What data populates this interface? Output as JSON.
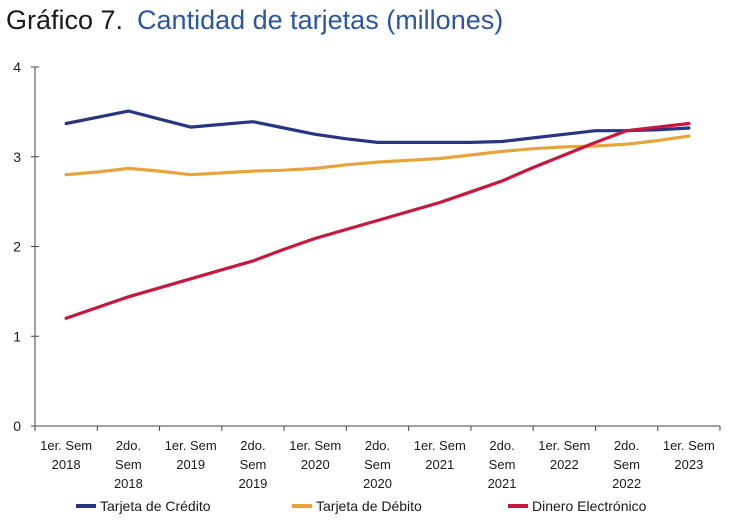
{
  "header": {
    "prefix": "Gráfico 7.",
    "title": "Cantidad de tarjetas (millones)"
  },
  "colors": {
    "credito": "#283580",
    "debito": "#e8a43c",
    "dinero": "#c8163c",
    "axis": "#444444",
    "title_accent": "#2d55a0"
  },
  "chart_data": {
    "type": "line",
    "title": "Cantidad de tarjetas (millones)",
    "xlabel": "",
    "ylabel": "",
    "ylim": [
      0,
      4
    ],
    "yticks": [
      "0",
      "1",
      "2",
      "3",
      "4"
    ],
    "grid": false,
    "legend_position": "bottom",
    "categories": [
      [
        "1er. Sem",
        "2018"
      ],
      [
        "2do.",
        "Sem",
        "2018"
      ],
      [
        "1er. Sem",
        "2019"
      ],
      [
        "2do.",
        "Sem",
        "2019"
      ],
      [
        "1er. Sem",
        "2020"
      ],
      [
        "2do.",
        "Sem",
        "2020"
      ],
      [
        "1er. Sem",
        "2021"
      ],
      [
        "2do.",
        "Sem",
        "2021"
      ],
      [
        "1er. Sem",
        "2022"
      ],
      [
        "2do.",
        "Sem",
        "2022"
      ],
      [
        "1er. Sem",
        "2023"
      ]
    ],
    "x": [
      0,
      0.5,
      1,
      1.5,
      2,
      2.5,
      3,
      3.5,
      4,
      4.5,
      5,
      5.5,
      6,
      6.5,
      7,
      7.5,
      8,
      8.5,
      9,
      9.5,
      10
    ],
    "series": [
      {
        "name": "Tarjeta de Crédito",
        "color": "#283580",
        "values": [
          3.37,
          3.44,
          3.51,
          3.42,
          3.33,
          3.36,
          3.39,
          3.32,
          3.25,
          3.2,
          3.16,
          3.16,
          3.16,
          3.16,
          3.17,
          3.21,
          3.25,
          3.29,
          3.29,
          3.3,
          3.32
        ]
      },
      {
        "name": "Tarjeta de Débito",
        "color": "#e8a43c",
        "values": [
          2.8,
          2.83,
          2.87,
          2.84,
          2.8,
          2.82,
          2.84,
          2.85,
          2.87,
          2.91,
          2.94,
          2.96,
          2.98,
          3.02,
          3.06,
          3.09,
          3.11,
          3.12,
          3.14,
          3.18,
          3.23
        ]
      },
      {
        "name": "Dinero Electrónico",
        "color": "#c8163c",
        "values": [
          1.2,
          1.32,
          1.44,
          1.54,
          1.64,
          1.74,
          1.84,
          1.97,
          2.09,
          2.19,
          2.29,
          2.39,
          2.49,
          2.61,
          2.73,
          2.88,
          3.02,
          3.16,
          3.29,
          3.33,
          3.37
        ]
      }
    ]
  }
}
